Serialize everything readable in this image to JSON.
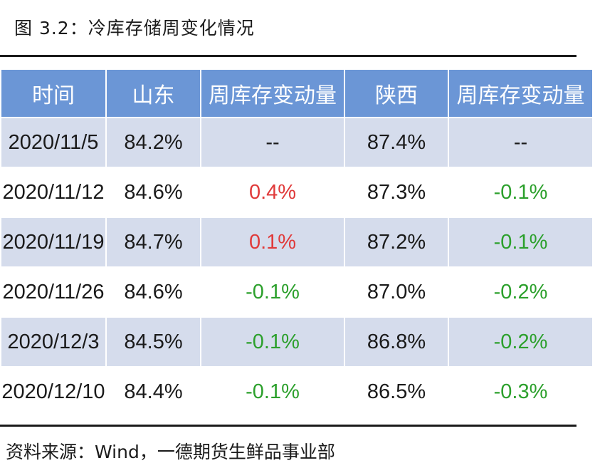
{
  "caption": "图 3.2：冷库存储周变化情况",
  "source": "资料来源：Wind，一德期货生鲜品事业部",
  "colors": {
    "header_bg": "#6b96d6",
    "band_bg": "#d5dcec",
    "positive": "#e03a3a",
    "negative": "#2ca02c"
  },
  "table": {
    "headers": [
      "时间",
      "山东",
      "周库存变动量",
      "陕西",
      "周库存变动量"
    ],
    "rows": [
      [
        "2020/11/5",
        "84.2%",
        "--",
        "87.4%",
        "--"
      ],
      [
        "2020/11/12",
        "84.6%",
        "0.4%",
        "87.3%",
        "-0.1%"
      ],
      [
        "2020/11/19",
        "84.7%",
        "0.1%",
        "87.2%",
        "-0.1%"
      ],
      [
        "2020/11/26",
        "84.6%",
        "-0.1%",
        "87.0%",
        "-0.2%"
      ],
      [
        "2020/12/3",
        "84.5%",
        "-0.1%",
        "86.8%",
        "-0.2%"
      ],
      [
        "2020/12/10",
        "84.4%",
        "-0.1%",
        "86.5%",
        "-0.3%"
      ]
    ]
  }
}
